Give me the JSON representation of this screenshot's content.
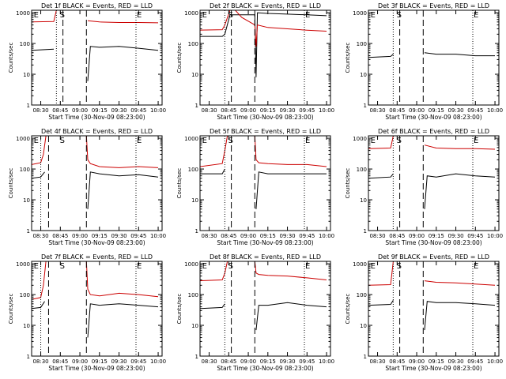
{
  "page": {
    "background": "#ffffff"
  },
  "colors": {
    "events": "#000000",
    "lld": "#cc0000",
    "axis": "#000000"
  },
  "chart_data": [
    {
      "type": "line",
      "title": "Det 1f BLACK = Events, RED = LLD",
      "xlabel": "Start Time (30-Nov-09 08:23:00)",
      "ylabel": "Counts/sec",
      "xlim": [
        "08:23",
        "10:03"
      ],
      "ylim": [
        1,
        1200
      ],
      "yscale": "log",
      "xticks": [
        "08:30",
        "08:45",
        "09:00",
        "09:15",
        "09:30",
        "09:45",
        "10:00"
      ],
      "yticks": [
        "1",
        "10",
        "100",
        "1000"
      ],
      "flags": [
        {
          "text": "E",
          "time": "08:24"
        },
        {
          "text": "S",
          "time": "08:44"
        },
        {
          "text": "E",
          "time": "09:43"
        }
      ],
      "dotted_lines": [
        "08:42",
        "09:43"
      ],
      "dashed_lines": [
        "08:47",
        "09:05"
      ],
      "series": [
        {
          "name": "Events",
          "color": "#000000",
          "x": [
            "08:23",
            "08:40",
            "08:47",
            "09:05",
            "09:06",
            "09:08",
            "09:15",
            "09:30",
            "09:45",
            "10:00"
          ],
          "y": [
            60,
            65,
            null,
            null,
            6,
            80,
            75,
            80,
            70,
            60
          ]
        },
        {
          "name": "LLD",
          "color": "#cc0000",
          "x": [
            "08:23",
            "08:40",
            "08:42",
            "08:47",
            "09:05",
            "09:06",
            "09:15",
            "09:30",
            "09:45",
            "10:00"
          ],
          "y": [
            500,
            520,
            1200,
            null,
            null,
            550,
            500,
            480,
            480,
            470
          ]
        }
      ]
    },
    {
      "type": "line",
      "title": "Det 2f BLACK = Events, RED = LLD",
      "xlabel": "Start Time (30-Nov-09 08:23:00)",
      "ylabel": "Counts/sec",
      "xlim": [
        "08:23",
        "10:03"
      ],
      "ylim": [
        1,
        1200
      ],
      "yscale": "log",
      "xticks": [
        "08:30",
        "08:45",
        "09:00",
        "09:15",
        "09:30",
        "09:45",
        "10:00"
      ],
      "yticks": [
        "1",
        "10",
        "100",
        "1000"
      ],
      "flags": [
        {
          "text": "E",
          "time": "08:24"
        },
        {
          "text": "S",
          "time": "08:44"
        },
        {
          "text": "E",
          "time": "09:43"
        }
      ],
      "dotted_lines": [
        "08:42",
        "09:43"
      ],
      "dashed_lines": [
        "08:47",
        "09:05"
      ],
      "series": [
        {
          "name": "Events",
          "color": "#000000",
          "x": [
            "08:23",
            "08:40",
            "08:42",
            "08:46",
            "09:05",
            "09:06",
            "09:07",
            "09:15",
            "09:30",
            "09:45",
            "10:00"
          ],
          "y": [
            170,
            170,
            200,
            850,
            850,
            8,
            1000,
            950,
            900,
            850,
            800
          ]
        },
        {
          "name": "LLD",
          "color": "#cc0000",
          "x": [
            "08:23",
            "08:40",
            "08:42",
            "08:46",
            "08:50",
            "08:55",
            "09:05",
            "09:06",
            "09:07",
            "09:15",
            "09:30",
            "09:45",
            "10:00"
          ],
          "y": [
            270,
            280,
            400,
            1200,
            1200,
            700,
            400,
            80,
            400,
            330,
            300,
            270,
            250
          ]
        }
      ]
    },
    {
      "type": "line",
      "title": "Det 3f BLACK = Events, RED = LLD",
      "xlabel": "Start Time (30-Nov-09 08:23:00)",
      "ylabel": "Counts/sec",
      "xlim": [
        "08:23",
        "10:03"
      ],
      "ylim": [
        1,
        1200
      ],
      "yscale": "log",
      "xticks": [
        "08:30",
        "08:45",
        "09:00",
        "09:15",
        "09:30",
        "09:45",
        "10:00"
      ],
      "yticks": [
        "1",
        "10",
        "100",
        "1000"
      ],
      "flags": [
        {
          "text": "E",
          "time": "08:24"
        },
        {
          "text": "S",
          "time": "08:44"
        },
        {
          "text": "E",
          "time": "09:43"
        }
      ],
      "dotted_lines": [
        "08:42",
        "09:43"
      ],
      "dashed_lines": [
        "08:47",
        "09:05"
      ],
      "series": [
        {
          "name": "Events",
          "color": "#000000",
          "x": [
            "08:23",
            "08:40",
            "08:42",
            "08:47",
            "09:05",
            "09:06",
            "09:15",
            "09:30",
            "09:45",
            "10:00"
          ],
          "y": [
            35,
            38,
            45,
            null,
            null,
            50,
            45,
            45,
            40,
            40
          ]
        },
        {
          "name": "LLD",
          "color": "#cc0000",
          "x": [
            "08:23",
            "10:00"
          ],
          "y": [
            1200,
            1200
          ]
        }
      ]
    },
    {
      "type": "line",
      "title": "Det 4f BLACK = Events, RED = LLD",
      "xlabel": "Start Time (30-Nov-09 08:23:00)",
      "ylabel": "Counts/sec",
      "xlim": [
        "08:23",
        "10:03"
      ],
      "ylim": [
        1,
        1200
      ],
      "yscale": "log",
      "xticks": [
        "08:30",
        "08:45",
        "09:00",
        "09:15",
        "09:30",
        "09:45",
        "10:00"
      ],
      "yticks": [
        "1",
        "10",
        "100",
        "1000"
      ],
      "flags": [
        {
          "text": "E",
          "time": "08:24"
        },
        {
          "text": "S",
          "time": "08:44"
        },
        {
          "text": "E",
          "time": "09:43"
        }
      ],
      "dotted_lines": [
        "08:30",
        "09:43"
      ],
      "dashed_lines": [
        "08:36",
        "09:05"
      ],
      "series": [
        {
          "name": "Events",
          "color": "#000000",
          "x": [
            "08:23",
            "08:30",
            "08:33",
            "08:36",
            "09:05",
            "09:06",
            "09:08",
            "09:15",
            "09:30",
            "09:45",
            "10:00"
          ],
          "y": [
            50,
            55,
            80,
            null,
            null,
            5,
            80,
            70,
            60,
            65,
            55
          ]
        },
        {
          "name": "LLD",
          "color": "#cc0000",
          "x": [
            "08:23",
            "08:30",
            "08:32",
            "08:34",
            "09:05",
            "09:06",
            "09:08",
            "09:15",
            "09:30",
            "09:45",
            "10:00"
          ],
          "y": [
            140,
            160,
            300,
            1200,
            1200,
            200,
            150,
            120,
            110,
            120,
            110
          ]
        }
      ]
    },
    {
      "type": "line",
      "title": "Det 5f BLACK = Events, RED = LLD",
      "xlabel": "Start Time (30-Nov-09 08:23:00)",
      "ylabel": "Counts/sec",
      "xlim": [
        "08:23",
        "10:03"
      ],
      "ylim": [
        1,
        1200
      ],
      "yscale": "log",
      "xticks": [
        "08:30",
        "08:45",
        "09:00",
        "09:15",
        "09:30",
        "09:45",
        "10:00"
      ],
      "yticks": [
        "1",
        "10",
        "100",
        "1000"
      ],
      "flags": [
        {
          "text": "E",
          "time": "08:24"
        },
        {
          "text": "S",
          "time": "08:44"
        },
        {
          "text": "E",
          "time": "09:43"
        }
      ],
      "dotted_lines": [
        "08:42",
        "09:43"
      ],
      "dashed_lines": [
        "08:47",
        "09:05"
      ],
      "series": [
        {
          "name": "Events",
          "color": "#000000",
          "x": [
            "08:23",
            "08:40",
            "08:42",
            "08:47",
            "09:05",
            "09:06",
            "09:08",
            "09:15",
            "09:30",
            "09:45",
            "10:00"
          ],
          "y": [
            70,
            70,
            100,
            null,
            null,
            5,
            80,
            70,
            70,
            70,
            70
          ]
        },
        {
          "name": "LLD",
          "color": "#cc0000",
          "x": [
            "08:23",
            "08:40",
            "08:42",
            "08:44",
            "09:05",
            "09:06",
            "09:08",
            "09:15",
            "09:30",
            "09:45",
            "10:00"
          ],
          "y": [
            120,
            150,
            400,
            1200,
            1200,
            200,
            160,
            150,
            140,
            140,
            120
          ]
        }
      ]
    },
    {
      "type": "line",
      "title": "Det 6f BLACK = Events, RED = LLD",
      "xlabel": "Start Time (30-Nov-09 08:23:00)",
      "ylabel": "Counts/sec",
      "xlim": [
        "08:23",
        "10:03"
      ],
      "ylim": [
        1,
        1200
      ],
      "yscale": "log",
      "xticks": [
        "08:30",
        "08:45",
        "09:00",
        "09:15",
        "09:30",
        "09:45",
        "10:00"
      ],
      "yticks": [
        "1",
        "10",
        "100",
        "1000"
      ],
      "flags": [
        {
          "text": "E",
          "time": "08:24"
        },
        {
          "text": "S",
          "time": "08:44"
        },
        {
          "text": "E",
          "time": "09:43"
        }
      ],
      "dotted_lines": [
        "08:42",
        "09:43"
      ],
      "dashed_lines": [
        "08:47",
        "09:05"
      ],
      "series": [
        {
          "name": "Events",
          "color": "#000000",
          "x": [
            "08:23",
            "08:40",
            "08:42",
            "08:47",
            "09:05",
            "09:06",
            "09:08",
            "09:15",
            "09:30",
            "09:45",
            "10:00"
          ],
          "y": [
            50,
            55,
            70,
            null,
            null,
            5,
            60,
            55,
            70,
            60,
            55
          ]
        },
        {
          "name": "LLD",
          "color": "#cc0000",
          "x": [
            "08:23",
            "08:40",
            "08:42",
            "08:47",
            "09:05",
            "09:06",
            "09:15",
            "09:30",
            "09:45",
            "10:00"
          ],
          "y": [
            460,
            480,
            1200,
            null,
            null,
            600,
            480,
            460,
            460,
            440
          ]
        }
      ]
    },
    {
      "type": "line",
      "title": "Det 7f BLACK = Events, RED = LLD",
      "xlabel": "Start Time (30-Nov-09 08:23:00)",
      "ylabel": "Counts/sec",
      "xlim": [
        "08:23",
        "10:03"
      ],
      "ylim": [
        1,
        1200
      ],
      "yscale": "log",
      "xticks": [
        "08:30",
        "08:45",
        "09:00",
        "09:15",
        "09:30",
        "09:45",
        "10:00"
      ],
      "yticks": [
        "1",
        "10",
        "100",
        "1000"
      ],
      "flags": [
        {
          "text": "E",
          "time": "08:24"
        },
        {
          "text": "S",
          "time": "08:44"
        },
        {
          "text": "E",
          "time": "09:43"
        }
      ],
      "dotted_lines": [
        "08:30",
        "09:43"
      ],
      "dashed_lines": [
        "08:36",
        "09:05"
      ],
      "series": [
        {
          "name": "Events",
          "color": "#000000",
          "x": [
            "08:23",
            "08:30",
            "08:33",
            "08:36",
            "09:05",
            "09:06",
            "09:08",
            "09:15",
            "09:30",
            "09:45",
            "10:00"
          ],
          "y": [
            35,
            38,
            60,
            null,
            null,
            4,
            50,
            45,
            50,
            45,
            40
          ]
        },
        {
          "name": "LLD",
          "color": "#cc0000",
          "x": [
            "08:23",
            "08:30",
            "08:32",
            "08:34",
            "09:05",
            "09:06",
            "09:08",
            "09:15",
            "09:30",
            "09:45",
            "10:00"
          ],
          "y": [
            70,
            80,
            200,
            1200,
            1200,
            150,
            100,
            90,
            110,
            100,
            85
          ]
        }
      ]
    },
    {
      "type": "line",
      "title": "Det 8f BLACK = Events, RED = LLD",
      "xlabel": "Start Time (30-Nov-09 08:23:00)",
      "ylabel": "Counts/sec",
      "xlim": [
        "08:23",
        "10:03"
      ],
      "ylim": [
        1,
        1200
      ],
      "yscale": "log",
      "xticks": [
        "08:30",
        "08:45",
        "09:00",
        "09:15",
        "09:30",
        "09:45",
        "10:00"
      ],
      "yticks": [
        "1",
        "10",
        "100",
        "1000"
      ],
      "flags": [
        {
          "text": "E",
          "time": "08:24"
        },
        {
          "text": "S",
          "time": "08:44"
        },
        {
          "text": "E",
          "time": "09:43"
        }
      ],
      "dotted_lines": [
        "08:42",
        "09:43"
      ],
      "dashed_lines": [
        "08:47",
        "09:05"
      ],
      "series": [
        {
          "name": "Events",
          "color": "#000000",
          "x": [
            "08:23",
            "08:40",
            "08:42",
            "08:47",
            "09:05",
            "09:06",
            "09:08",
            "09:15",
            "09:30",
            "09:45",
            "10:00"
          ],
          "y": [
            35,
            38,
            50,
            null,
            null,
            7,
            45,
            45,
            55,
            45,
            40
          ]
        },
        {
          "name": "LLD",
          "color": "#cc0000",
          "x": [
            "08:23",
            "08:40",
            "08:42",
            "08:44",
            "09:05",
            "09:06",
            "09:08",
            "09:15",
            "09:30",
            "09:45",
            "10:00"
          ],
          "y": [
            280,
            300,
            500,
            1200,
            1200,
            500,
            450,
            420,
            400,
            350,
            300
          ]
        }
      ]
    },
    {
      "type": "line",
      "title": "Det 9f BLACK = Events, RED = LLD",
      "xlabel": "Start Time (30-Nov-09 08:23:00)",
      "ylabel": "Counts/sec",
      "xlim": [
        "08:23",
        "10:03"
      ],
      "ylim": [
        1,
        1200
      ],
      "yscale": "log",
      "xticks": [
        "08:30",
        "08:45",
        "09:00",
        "09:15",
        "09:30",
        "09:45",
        "10:00"
      ],
      "yticks": [
        "1",
        "10",
        "100",
        "1000"
      ],
      "flags": [
        {
          "text": "E",
          "time": "08:24"
        },
        {
          "text": "S",
          "time": "08:44"
        },
        {
          "text": "E",
          "time": "09:43"
        }
      ],
      "dotted_lines": [
        "08:42",
        "09:43"
      ],
      "dashed_lines": [
        "08:47",
        "09:05"
      ],
      "series": [
        {
          "name": "Events",
          "color": "#000000",
          "x": [
            "08:23",
            "08:40",
            "08:42",
            "08:47",
            "09:05",
            "09:06",
            "09:08",
            "09:15",
            "09:30",
            "09:45",
            "10:00"
          ],
          "y": [
            45,
            48,
            65,
            null,
            null,
            7,
            60,
            55,
            55,
            50,
            45
          ]
        },
        {
          "name": "LLD",
          "color": "#cc0000",
          "x": [
            "08:23",
            "08:40",
            "08:42",
            "08:47",
            "09:05",
            "09:06",
            "09:15",
            "09:30",
            "09:45",
            "10:00"
          ],
          "y": [
            200,
            210,
            1200,
            null,
            null,
            280,
            250,
            240,
            220,
            200
          ]
        }
      ]
    }
  ]
}
